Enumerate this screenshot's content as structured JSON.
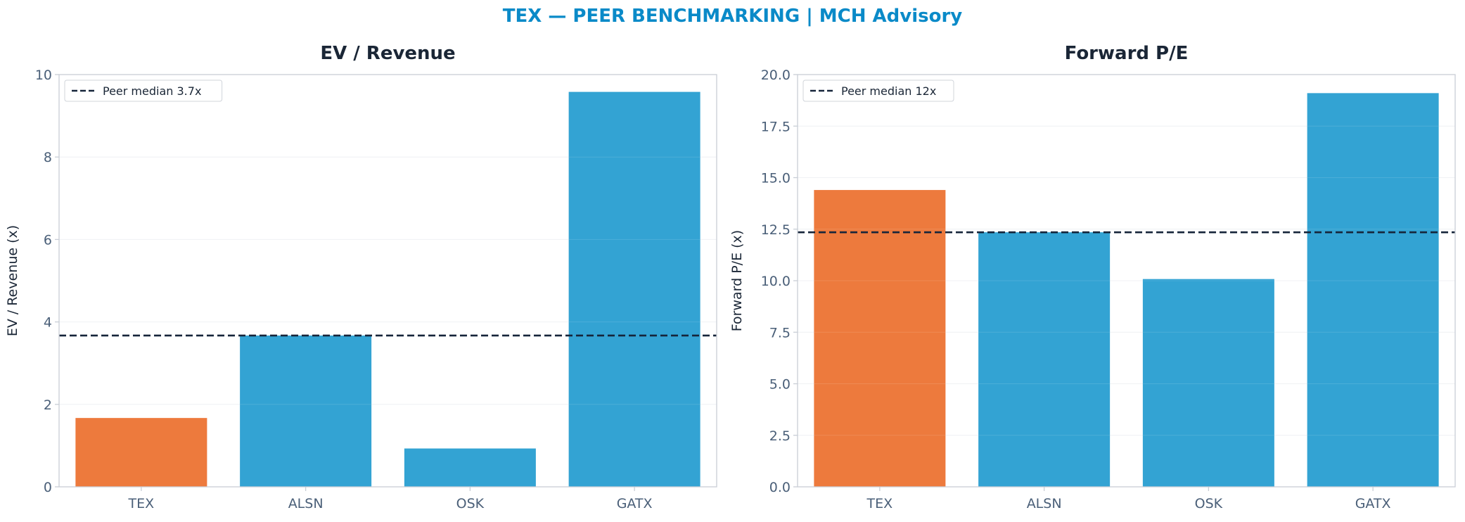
{
  "title": "TEX — PEER BENCHMARKING | MCH Advisory",
  "colors": {
    "title": "#0a8ac8",
    "highlight": "#ed7a3d",
    "peer": "#33a3d3",
    "median_line": "#16253a",
    "axis_text": "#4a5f78",
    "subplot_title": "#1a2636",
    "ylabel": "#1a2636",
    "spine": "#c9ced6",
    "grid": "#eef0f3"
  },
  "chart_data": [
    {
      "type": "bar",
      "title": "EV / Revenue",
      "xlabel": "",
      "ylabel": "EV / Revenue (x)",
      "categories": [
        "TEX",
        "ALSN",
        "OSK",
        "GATX"
      ],
      "values": [
        1.67,
        3.67,
        0.93,
        9.58
      ],
      "highlight": "TEX",
      "ylim": [
        0,
        10
      ],
      "yticks": [
        0,
        2,
        4,
        6,
        8,
        10
      ],
      "ytick_labels": [
        "0",
        "2",
        "4",
        "6",
        "8",
        "10"
      ],
      "grid": true,
      "reference_line": {
        "value": 3.67,
        "label": "Peer median 3.7x",
        "style": "dashed"
      },
      "legend": {
        "position": "top-left"
      }
    },
    {
      "type": "bar",
      "title": "Forward P/E",
      "xlabel": "",
      "ylabel": "Forward P/E (x)",
      "categories": [
        "TEX",
        "ALSN",
        "OSK",
        "GATX"
      ],
      "values": [
        14.4,
        12.35,
        10.08,
        19.1
      ],
      "highlight": "TEX",
      "ylim": [
        0,
        20
      ],
      "yticks": [
        0,
        2.5,
        5,
        7.5,
        10,
        12.5,
        15,
        17.5,
        20
      ],
      "ytick_labels": [
        "0.0",
        "2.5",
        "5.0",
        "7.5",
        "10.0",
        "12.5",
        "15.0",
        "17.5",
        "20.0"
      ],
      "grid": true,
      "reference_line": {
        "value": 12.35,
        "label": "Peer median 12x",
        "style": "dashed"
      },
      "legend": {
        "position": "top-left"
      }
    }
  ]
}
